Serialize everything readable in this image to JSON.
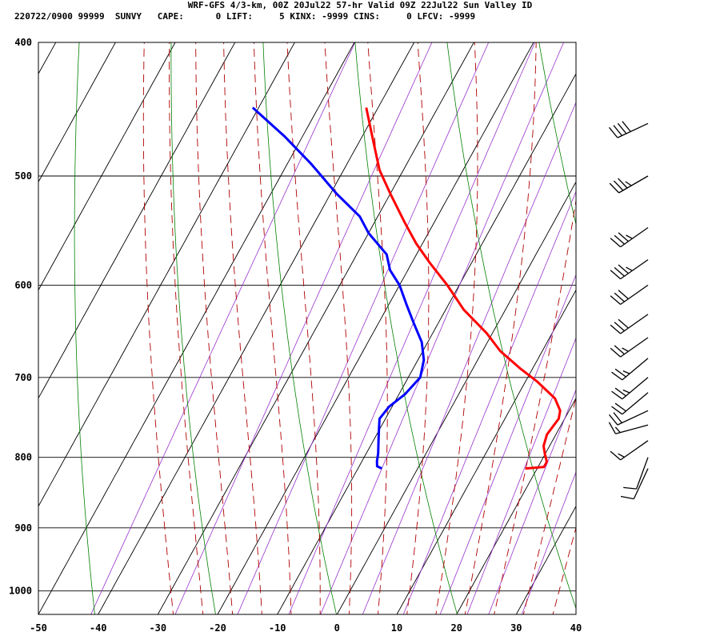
{
  "header": {
    "line1": "WRF-GFS 4/3-km, 00Z 20Jul22 57-hr Valid 09Z 22Jul22 Sun Valley ID",
    "line2": "220722/0900 99999  SUNVY   CAPE:      0 LIFT:     5 KINX: -9999 CINS:     0 LFCV: -9999"
  },
  "colors": {
    "temperature": "#ff0000",
    "dewpoint": "#0000ff",
    "isotherm": "#000000",
    "dry_adiabat": "#008000",
    "moist_adiabat": "#b00000",
    "mixing_ratio": "#9933cc",
    "wind_barb": "#000000"
  },
  "chart_data": {
    "type": "line",
    "diagram": "skew-T log-P",
    "xlabel": "",
    "ylabel": "",
    "x_ticks": [
      -50,
      -40,
      -30,
      -20,
      -10,
      0,
      10,
      20,
      30,
      40
    ],
    "y_ticks": [
      400,
      500,
      600,
      700,
      800,
      900,
      1000
    ],
    "x_range": [
      -50,
      40
    ],
    "pressure_range": [
      400,
      1040
    ],
    "log_pressure": true,
    "grid": true,
    "series": [
      {
        "key": "temperature",
        "color": "#ff0000",
        "points": [
          [
            815,
            18
          ],
          [
            813,
            21
          ],
          [
            806,
            21
          ],
          [
            796,
            20
          ],
          [
            785,
            19
          ],
          [
            770,
            18.5
          ],
          [
            750,
            19
          ],
          [
            740,
            18.5
          ],
          [
            725,
            16.5
          ],
          [
            705,
            12
          ],
          [
            690,
            8
          ],
          [
            670,
            3
          ],
          [
            650,
            -1
          ],
          [
            625,
            -7
          ],
          [
            600,
            -12
          ],
          [
            578,
            -17
          ],
          [
            560,
            -21
          ],
          [
            540,
            -25
          ],
          [
            515,
            -30
          ],
          [
            495,
            -34
          ],
          [
            470,
            -38
          ],
          [
            446,
            -42
          ]
        ]
      },
      {
        "key": "dewpoint",
        "color": "#0000ff",
        "points": [
          [
            815,
            -6
          ],
          [
            812,
            -7
          ],
          [
            805,
            -7.5
          ],
          [
            795,
            -8
          ],
          [
            780,
            -9
          ],
          [
            765,
            -10
          ],
          [
            750,
            -11
          ],
          [
            735,
            -10.5
          ],
          [
            720,
            -9
          ],
          [
            700,
            -8
          ],
          [
            680,
            -9
          ],
          [
            660,
            -11
          ],
          [
            640,
            -14
          ],
          [
            620,
            -17
          ],
          [
            600,
            -20
          ],
          [
            585,
            -23
          ],
          [
            570,
            -25
          ],
          [
            550,
            -30
          ],
          [
            535,
            -33
          ],
          [
            515,
            -39
          ],
          [
            490,
            -46
          ],
          [
            468,
            -53
          ],
          [
            446,
            -61
          ]
        ]
      }
    ],
    "wind_barbs": [
      {
        "pressure": 815,
        "direction": 205,
        "speed": 10
      },
      {
        "pressure": 800,
        "direction": 200,
        "speed": 10
      },
      {
        "pressure": 778,
        "direction": 235,
        "speed": 15
      },
      {
        "pressure": 758,
        "direction": 255,
        "speed": 15
      },
      {
        "pressure": 740,
        "direction": 245,
        "speed": 20
      },
      {
        "pressure": 718,
        "direction": 230,
        "speed": 20
      },
      {
        "pressure": 700,
        "direction": 230,
        "speed": 25
      },
      {
        "pressure": 678,
        "direction": 230,
        "speed": 25
      },
      {
        "pressure": 655,
        "direction": 235,
        "speed": 25
      },
      {
        "pressure": 630,
        "direction": 235,
        "speed": 30
      },
      {
        "pressure": 600,
        "direction": 235,
        "speed": 30
      },
      {
        "pressure": 575,
        "direction": 235,
        "speed": 35
      },
      {
        "pressure": 545,
        "direction": 235,
        "speed": 35
      },
      {
        "pressure": 500,
        "direction": 240,
        "speed": 35
      },
      {
        "pressure": 458,
        "direction": 245,
        "speed": 40
      }
    ]
  }
}
